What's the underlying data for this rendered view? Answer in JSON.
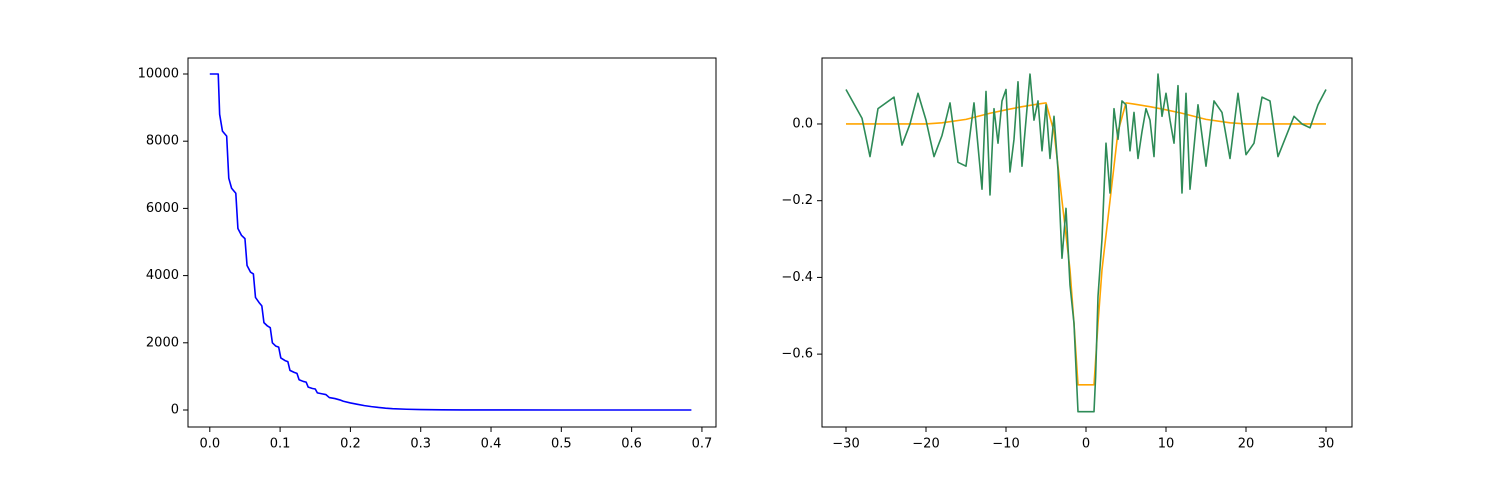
{
  "chart_data": [
    {
      "type": "line",
      "xlim": [
        -0.031,
        0.72
      ],
      "ylim": [
        -506,
        10476
      ],
      "xticks": [
        {
          "value": 0,
          "label": "0.0"
        },
        0.1,
        0.2,
        0.3,
        0.4,
        0.5,
        0.6,
        0.7
      ],
      "yticks": [
        0,
        2000,
        4000,
        6000,
        8000,
        10000
      ],
      "series": [
        {
          "color": "#0000ff",
          "x": [
            0.0,
            0.012,
            0.014,
            0.018,
            0.024,
            0.027,
            0.031,
            0.037,
            0.04,
            0.045,
            0.05,
            0.053,
            0.058,
            0.062,
            0.065,
            0.07,
            0.074,
            0.077,
            0.082,
            0.086,
            0.089,
            0.094,
            0.098,
            0.101,
            0.107,
            0.111,
            0.114,
            0.12,
            0.124,
            0.127,
            0.133,
            0.137,
            0.14,
            0.146,
            0.15,
            0.153,
            0.16,
            0.165,
            0.17,
            0.178,
            0.185,
            0.19,
            0.2,
            0.21,
            0.22,
            0.23,
            0.24,
            0.25,
            0.26,
            0.28,
            0.3,
            0.33,
            0.36,
            0.4,
            0.5,
            0.6,
            0.685
          ],
          "values": [
            10000,
            10000,
            8800,
            8300,
            8150,
            6900,
            6600,
            6450,
            5400,
            5200,
            5100,
            4300,
            4100,
            4050,
            3350,
            3200,
            3100,
            2600,
            2500,
            2450,
            2000,
            1900,
            1870,
            1550,
            1470,
            1440,
            1180,
            1120,
            1090,
            900,
            850,
            830,
            680,
            640,
            625,
            510,
            480,
            460,
            370,
            340,
            300,
            260,
            210,
            170,
            130,
            100,
            75,
            55,
            40,
            22,
            12,
            5,
            2,
            1,
            0,
            0,
            0
          ]
        }
      ]
    },
    {
      "type": "line",
      "xlim": [
        -33,
        33.25
      ],
      "ylim": [
        -0.79,
        0.172
      ],
      "xticks": [
        {
          "value": -30,
          "label": "−30"
        },
        {
          "value": -20,
          "label": "−20"
        },
        {
          "value": -10,
          "label": "−10"
        },
        0,
        10,
        20,
        30
      ],
      "yticks": [
        {
          "value": -0.6,
          "label": "−0.6"
        },
        {
          "value": -0.4,
          "label": "−0.4"
        },
        {
          "value": -0.2,
          "label": "−0.2"
        },
        {
          "value": 0,
          "label": "0.0"
        }
      ],
      "series": [
        {
          "color": "#ffa500",
          "x": [
            -30,
            -25,
            -20,
            -18,
            -15,
            -12,
            -10,
            -8,
            -6,
            -5,
            -4,
            -3,
            -2,
            -1.5,
            -1,
            1,
            1.5,
            2,
            3,
            4,
            5,
            6,
            8,
            10,
            12,
            15,
            18,
            20,
            25,
            30
          ],
          "values": [
            0,
            0,
            0,
            0.003,
            0.012,
            0.028,
            0.037,
            0.045,
            0.052,
            0.055,
            -0.02,
            -0.2,
            -0.38,
            -0.52,
            -0.68,
            -0.68,
            -0.52,
            -0.38,
            -0.2,
            -0.02,
            0.055,
            0.052,
            0.045,
            0.037,
            0.028,
            0.012,
            0.003,
            0,
            0,
            0
          ]
        },
        {
          "color": "#2e8b57",
          "x": [
            -30,
            -28,
            -27,
            -26,
            -24,
            -23,
            -22,
            -21,
            -20,
            -19,
            -18,
            -17,
            -16,
            -15,
            -14,
            -13,
            -12.5,
            -12,
            -11.5,
            -11,
            -10.5,
            -10,
            -9.5,
            -9,
            -8.5,
            -8,
            -7.5,
            -7,
            -6.5,
            -6,
            -5.5,
            -5,
            -4.5,
            -4,
            -3.5,
            -3,
            -2.5,
            -2,
            -1.5,
            -1.2,
            -1,
            1,
            1.2,
            1.5,
            2,
            2.5,
            3,
            3.5,
            4,
            4.5,
            5,
            5.5,
            6,
            6.5,
            7,
            7.5,
            8,
            8.5,
            9,
            9.5,
            10,
            10.5,
            11,
            11.5,
            12,
            12.5,
            13,
            14,
            15,
            16,
            17,
            18,
            19,
            20,
            21,
            22,
            23,
            24,
            26,
            27,
            28,
            29,
            30
          ],
          "values": [
            0.09,
            0.015,
            -0.085,
            0.04,
            0.07,
            -0.055,
            0,
            0.08,
            0.01,
            -0.085,
            -0.03,
            0.055,
            -0.1,
            -0.11,
            0.055,
            -0.17,
            0.085,
            -0.185,
            0.04,
            -0.05,
            0.06,
            0.09,
            -0.125,
            -0.04,
            0.11,
            -0.11,
            0.01,
            0.13,
            0.01,
            0.06,
            -0.07,
            0.05,
            -0.09,
            0.02,
            -0.12,
            -0.35,
            -0.22,
            -0.42,
            -0.52,
            -0.66,
            -0.75,
            -0.75,
            -0.66,
            -0.45,
            -0.3,
            -0.05,
            -0.18,
            0.04,
            -0.04,
            0.06,
            0.05,
            -0.07,
            0.03,
            -0.09,
            -0.02,
            0.04,
            0.01,
            -0.085,
            0.13,
            0.02,
            0.08,
            0.01,
            -0.05,
            0.1,
            -0.18,
            0.08,
            -0.17,
            0.05,
            -0.11,
            0.06,
            0.03,
            -0.09,
            0.08,
            -0.08,
            -0.05,
            0.07,
            0.06,
            -0.085,
            0.02,
            0.0,
            -0.01,
            0.05,
            0.09
          ]
        }
      ]
    }
  ]
}
